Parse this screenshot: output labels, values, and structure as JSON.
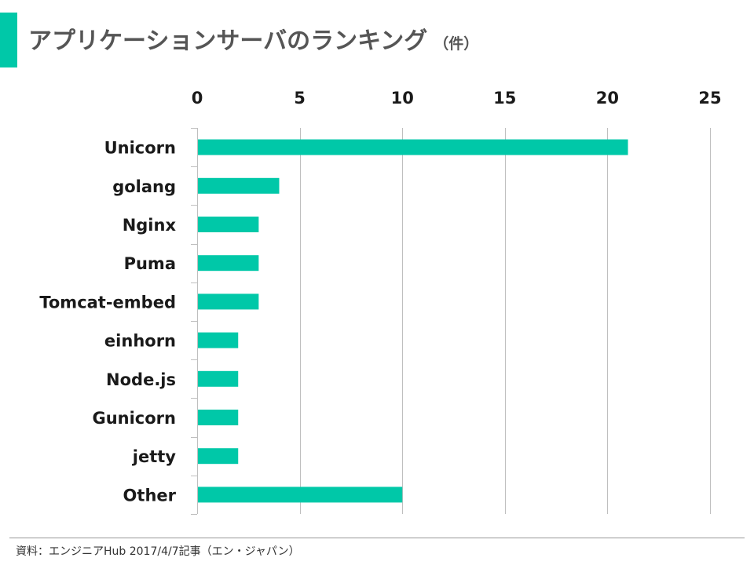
{
  "title": "アプリケーションサーバのランキング",
  "unit": "（件）",
  "source": "資料：エンジニアHub 2017/4/7記事（エン・ジャパン）",
  "colors": {
    "accent": "#00c8a8",
    "bar": "#00c8a8",
    "grid": "#bfbfbf",
    "text": "#1a1a1a",
    "title": "#555555"
  },
  "chart_data": {
    "type": "bar",
    "orientation": "horizontal",
    "categories": [
      "Unicorn",
      "golang",
      "Nginx",
      "Puma",
      "Tomcat-embed",
      "einhorn",
      "Node.js",
      "Gunicorn",
      "jetty",
      "Other"
    ],
    "values": [
      21,
      4,
      3,
      3,
      3,
      2,
      2,
      2,
      2,
      10
    ],
    "xlim": [
      0,
      25
    ],
    "xticks": [
      "0",
      "5",
      "10",
      "15",
      "20",
      "25"
    ],
    "x_axis_position": "top",
    "grid": true
  }
}
